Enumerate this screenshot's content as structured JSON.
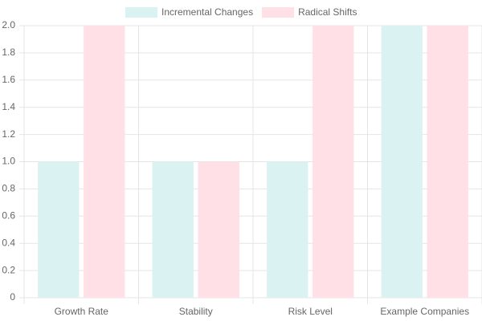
{
  "chart_data": {
    "type": "bar",
    "categories": [
      "Growth Rate",
      "Stability",
      "Risk Level",
      "Example Companies"
    ],
    "series": [
      {
        "name": "Incremental Changes",
        "color": "#dbf2f2",
        "values": [
          1,
          1,
          1,
          2
        ]
      },
      {
        "name": "Radical Shifts",
        "color": "#ffe0e6",
        "values": [
          2,
          1,
          2,
          2
        ]
      }
    ],
    "ylim": [
      0,
      2
    ],
    "yticks": [
      0,
      0.2,
      0.4,
      0.6,
      0.8,
      {
        "value": 1,
        "label": "1.0"
      },
      1.2,
      1.4,
      1.6,
      1.8,
      {
        "value": 2,
        "label": "2.0"
      }
    ],
    "grid": true,
    "legend": "top"
  }
}
